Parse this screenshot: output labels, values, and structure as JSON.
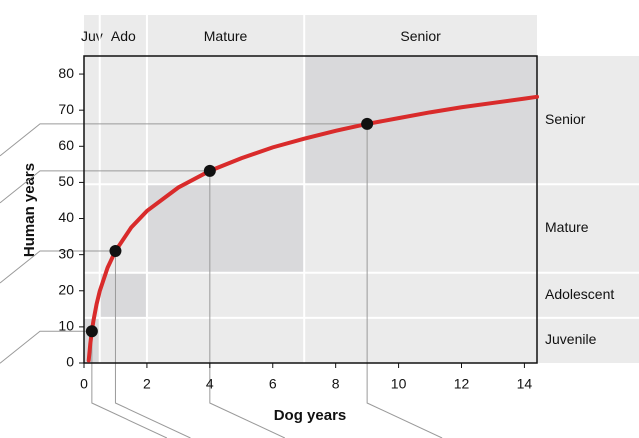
{
  "chart_data": {
    "type": "line",
    "xlabel": "Dog years",
    "ylabel": "Human years",
    "xlim": [
      0,
      14.4
    ],
    "ylim": [
      0,
      85
    ],
    "xticks": [
      0,
      2,
      4,
      6,
      8,
      10,
      12,
      14
    ],
    "yticks": [
      0,
      10,
      20,
      30,
      40,
      50,
      60,
      70,
      80
    ],
    "x": [
      0.15,
      0.2,
      0.25,
      0.3,
      0.4,
      0.5,
      0.75,
      1,
      1.5,
      2,
      3,
      4,
      5,
      6,
      7,
      8,
      9,
      10,
      11,
      12,
      13,
      14,
      14.4
    ],
    "series": [
      {
        "color": "#d92b2b",
        "values": [
          0.7,
          5.3,
          8.8,
          11.7,
          16.3,
          19.9,
          26.4,
          31,
          37.5,
          42.1,
          48.6,
          53.2,
          56.7,
          59.7,
          62.1,
          64.3,
          66.2,
          67.8,
          69.4,
          70.8,
          72.0,
          73.2,
          73.7
        ]
      }
    ],
    "points": {
      "color": "#111111",
      "x": [
        0.25,
        1,
        4,
        9
      ],
      "values": [
        8.8,
        31,
        53.2,
        66.2
      ]
    },
    "stages": [
      {
        "x_label": "Juv",
        "y_label": "Juvenile",
        "x": [
          0,
          0.5
        ],
        "y": [
          0,
          12.5
        ]
      },
      {
        "x_label": "Ado",
        "y_label": "Adolescent",
        "x": [
          0.5,
          2
        ],
        "y": [
          12.5,
          25
        ]
      },
      {
        "x_label": "Mature",
        "y_label": "Mature",
        "x": [
          2,
          7
        ],
        "y": [
          25,
          49.5
        ]
      },
      {
        "x_label": "Senior",
        "y_label": "Senior",
        "x": [
          7,
          14.4
        ],
        "y": [
          49.5,
          85
        ]
      }
    ]
  }
}
